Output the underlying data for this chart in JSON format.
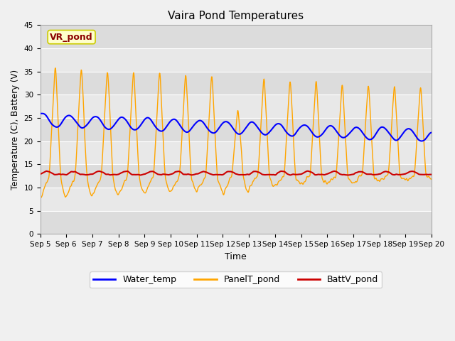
{
  "title": "Vaira Pond Temperatures",
  "xlabel": "Time",
  "ylabel": "Temperature (C), Battery (V)",
  "ylim": [
    0,
    45
  ],
  "yticks": [
    0,
    5,
    10,
    15,
    20,
    25,
    30,
    35,
    40,
    45
  ],
  "annotation": "VR_pond",
  "annotation_color": "#8B0000",
  "annotation_bg": "#FFFFCC",
  "annotation_edge": "#CCCC00",
  "water_color": "#0000FF",
  "panel_color": "#FFA500",
  "batt_color": "#CC0000",
  "fig_bg": "#F0F0F0",
  "plot_bg": "#E8E8E8",
  "grid_color": "#FFFFFF",
  "legend_labels": [
    "Water_temp",
    "PanelT_pond",
    "BattV_pond"
  ],
  "band_colors": [
    "#DCDCDC",
    "#E8E8E8"
  ],
  "n_days": 15,
  "n_points": 1440
}
